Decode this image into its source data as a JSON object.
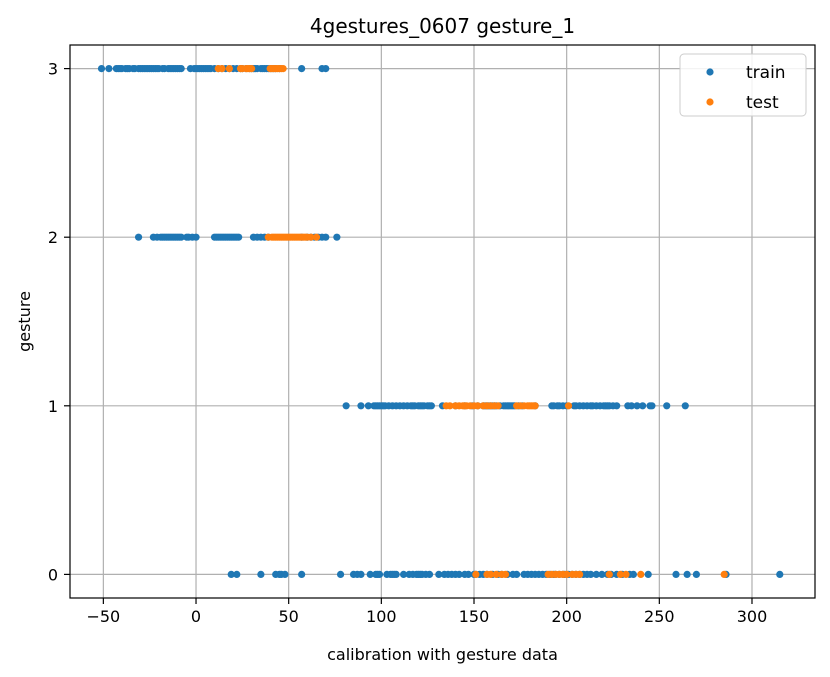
{
  "chart_data": {
    "type": "scatter",
    "title": "4gestures_0607 gesture_1",
    "xlabel": "calibration with gesture data",
    "ylabel": "gesture",
    "xlim": [
      -68,
      334
    ],
    "ylim": [
      -0.14,
      3.14
    ],
    "xticks": [
      -50,
      0,
      50,
      100,
      150,
      200,
      250,
      300
    ],
    "xtick_labels": [
      "−50",
      "0",
      "50",
      "100",
      "150",
      "200",
      "250",
      "300"
    ],
    "yticks": [
      0,
      1,
      2,
      3
    ],
    "ytick_labels": [
      "0",
      "1",
      "2",
      "3"
    ],
    "grid": true,
    "legend_position": "top-right",
    "series": [
      {
        "name": "train",
        "color": "#1f77b4",
        "points": [
          {
            "y": 3,
            "x": [
              -51,
              -47,
              -43,
              -42,
              -41,
              -40,
              -38,
              -37,
              -36,
              -34,
              -33,
              -31,
              -30,
              -29,
              -28,
              -27,
              -26,
              -25,
              -24,
              -23,
              -22,
              -21,
              -20,
              -18,
              -17,
              -15,
              -14,
              -13,
              -12,
              -11,
              -10,
              -9,
              -8,
              -3,
              -1,
              0,
              1,
              2,
              3,
              4,
              5,
              6,
              7,
              8,
              10,
              12,
              14,
              16,
              18,
              20,
              22,
              24,
              25,
              27,
              29,
              30,
              31,
              32,
              33,
              35,
              36,
              37,
              38,
              39,
              40,
              41,
              42,
              43,
              45,
              57,
              68,
              70
            ]
          },
          {
            "y": 2,
            "x": [
              -31,
              -23,
              -21,
              -19,
              -18,
              -17,
              -16,
              -15,
              -14,
              -13,
              -12,
              -11,
              -10,
              -9,
              -8,
              -5,
              -4,
              -2,
              0,
              10,
              11,
              12,
              13,
              14,
              15,
              16,
              17,
              18,
              19,
              20,
              21,
              22,
              23,
              31,
              33,
              35,
              37,
              39,
              57,
              60,
              62,
              64,
              66,
              68,
              70,
              76
            ]
          },
          {
            "y": 1,
            "x": [
              81,
              89,
              93,
              96,
              97,
              98,
              99,
              100,
              101,
              102,
              104,
              106,
              108,
              110,
              112,
              114,
              116,
              117,
              118,
              120,
              121,
              122,
              123,
              125,
              126,
              127,
              133,
              140,
              145,
              149,
              152,
              155,
              156,
              157,
              158,
              159,
              160,
              161,
              162,
              164,
              166,
              167,
              168,
              169,
              170,
              171,
              172,
              174,
              176,
              183,
              192,
              193,
              195,
              196,
              198,
              200,
              204,
              205,
              207,
              209,
              211,
              213,
              214,
              216,
              218,
              220,
              221,
              222,
              223,
              225,
              227,
              233,
              235,
              238,
              241,
              245,
              246,
              254,
              264
            ]
          },
          {
            "y": 0,
            "x": [
              19,
              22,
              35,
              43,
              45,
              46,
              48,
              57,
              78,
              85,
              87,
              89,
              94,
              97,
              98,
              99,
              103,
              105,
              106,
              107,
              108,
              112,
              115,
              117,
              119,
              120,
              121,
              122,
              124,
              126,
              131,
              134,
              136,
              138,
              140,
              142,
              145,
              147,
              150,
              151,
              153,
              155,
              157,
              160,
              163,
              165,
              168,
              171,
              173,
              177,
              179,
              181,
              183,
              185,
              187,
              189,
              191,
              193,
              194,
              196,
              198,
              199,
              201,
              203,
              205,
              207,
              209,
              211,
              213,
              216,
              219,
              222,
              224,
              227,
              230,
              234,
              236,
              244,
              259,
              265,
              270,
              286,
              315
            ]
          }
        ]
      },
      {
        "name": "test",
        "color": "#ff7f0e",
        "points": [
          {
            "y": 3,
            "x": [
              12,
              14,
              18,
              24,
              25,
              27,
              28,
              29,
              30,
              40,
              41,
              42,
              43,
              44,
              45,
              46,
              47
            ]
          },
          {
            "y": 2,
            "x": [
              39,
              41,
              42,
              43,
              44,
              45,
              46,
              47,
              48,
              49,
              50,
              51,
              52,
              53,
              54,
              55,
              56,
              57,
              58,
              59,
              60,
              62,
              65
            ]
          },
          {
            "y": 1,
            "x": [
              135,
              137,
              140,
              142,
              144,
              145,
              146,
              148,
              150,
              152,
              155,
              157,
              159,
              161,
              163,
              173,
              175,
              177,
              179,
              180,
              181,
              182,
              183,
              201
            ]
          },
          {
            "y": 0,
            "x": [
              151,
              157,
              159,
              162,
              165,
              167,
              190,
              192,
              194,
              196,
              198,
              200,
              203,
              205,
              207,
              223,
              229,
              232,
              240,
              285
            ]
          }
        ]
      }
    ]
  }
}
